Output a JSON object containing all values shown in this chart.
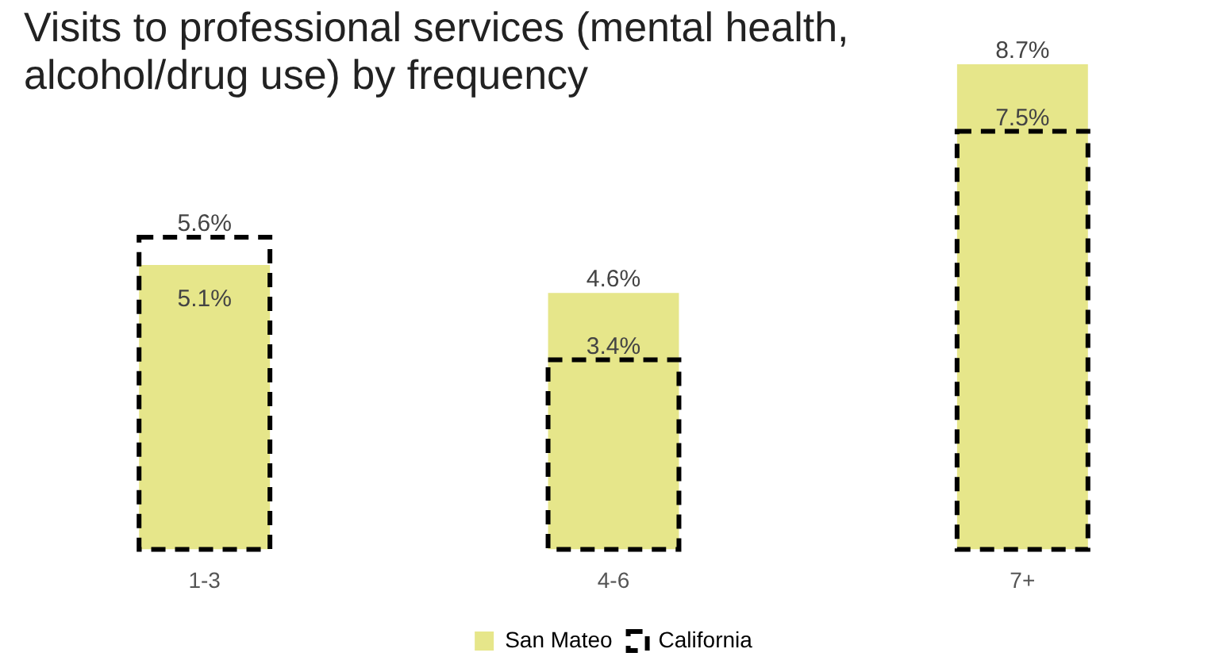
{
  "chart_data": {
    "type": "bar",
    "title": "Visits to professional services (mental health, alcohol/drug use) by frequency",
    "categories": [
      "1-3",
      "4-6",
      "7+"
    ],
    "series": [
      {
        "name": "San Mateo",
        "color": "#e6e68a",
        "values": [
          5.1,
          4.6,
          8.7
        ],
        "value_labels": [
          "5.1%",
          "4.6%",
          "8.7%"
        ]
      },
      {
        "name": "California",
        "color": "#000000",
        "line_style": "dashed",
        "values": [
          5.6,
          3.4,
          7.5
        ],
        "value_labels": [
          "5.6%",
          "3.4%",
          "7.5%"
        ]
      }
    ],
    "tick_labels": "x",
    "legend": "bottom",
    "grid": false
  }
}
